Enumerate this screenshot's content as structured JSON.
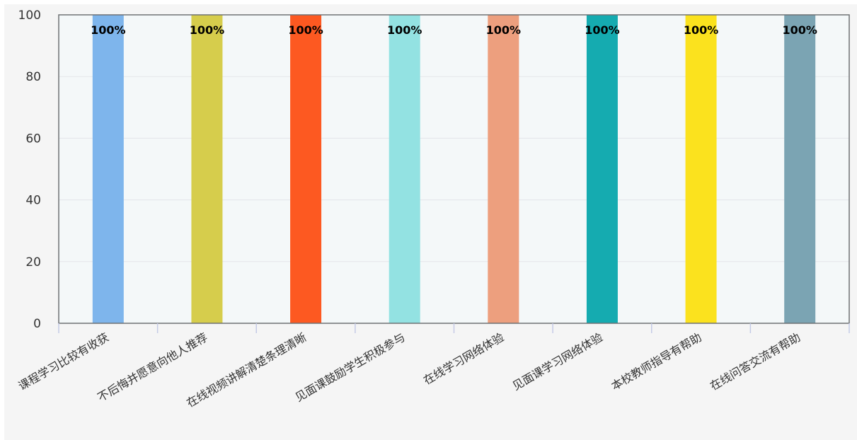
{
  "chart_data": {
    "type": "bar",
    "categories": [
      "课程学习比较有收获",
      "不后悔并愿意向他人推荐",
      "在线视频讲解清楚条理清晰",
      "见面课鼓励学生积极参与",
      "在线学习网络体验",
      "见面课学习网络体验",
      "本校教师指导有帮助",
      "在线问答交流有帮助"
    ],
    "values": [
      100,
      100,
      100,
      100,
      100,
      100,
      100,
      100
    ],
    "data_labels": [
      "100%",
      "100%",
      "100%",
      "100%",
      "100%",
      "100%",
      "100%",
      "100%"
    ],
    "colors": [
      "#7eb5ec",
      "#d6cd4c",
      "#fd5921",
      "#93e2e2",
      "#ed9f7e",
      "#15abb0",
      "#fbe21e",
      "#7ba4b3"
    ],
    "yticks": [
      "0",
      "20",
      "40",
      "60",
      "80",
      "100"
    ],
    "ylim": [
      0,
      100
    ],
    "title": "",
    "xlabel": "",
    "ylabel": "",
    "grid": true,
    "legend": "none"
  }
}
